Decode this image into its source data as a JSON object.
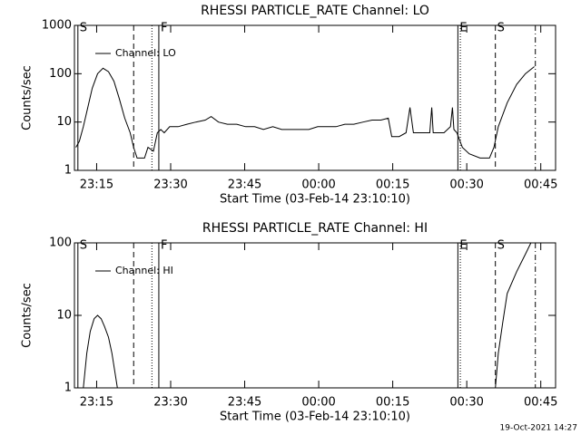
{
  "chart_data": [
    {
      "type": "line",
      "title": "RHESSI PARTICLE_RATE Channel: LO",
      "xlabel": "Start Time (03-Feb-14 23:10:10)",
      "ylabel": "Counts/sec",
      "log_y": true,
      "legend": "upper left",
      "xlim": [
        1390.5,
        1488.0
      ],
      "xticks": [
        {
          "value": 1395,
          "label": "23:15"
        },
        {
          "value": 1410,
          "label": "23:30"
        },
        {
          "value": 1425,
          "label": "23:45"
        },
        {
          "value": 1440,
          "label": "00:00"
        },
        {
          "value": 1455,
          "label": "00:15"
        },
        {
          "value": 1470,
          "label": "00:30"
        },
        {
          "value": 1485,
          "label": "00:45"
        }
      ],
      "ylim": [
        1,
        1000
      ],
      "yticks": [
        1000,
        100,
        10,
        1
      ],
      "x": [
        1390.8,
        1391.5,
        1392.3,
        1393.2,
        1394.1,
        1395.2,
        1396.3,
        1397.4,
        1398.5,
        1399.6,
        1400.7,
        1401.8,
        1402.5,
        1403.2,
        1404.7,
        1405.4,
        1406.5,
        1407.3,
        1408.0,
        1408.7,
        1409.8,
        1411.5,
        1413.3,
        1415.1,
        1417.0,
        1418.2,
        1419.7,
        1421.5,
        1423.4,
        1425.2,
        1427.0,
        1428.8,
        1430.7,
        1432.5,
        1434.3,
        1436.2,
        1438.0,
        1439.8,
        1441.6,
        1443.5,
        1445.3,
        1447.1,
        1449.0,
        1450.8,
        1452.6,
        1454.1,
        1454.8,
        1456.3,
        1457.7,
        1458.5,
        1459.2,
        1460.9,
        1462.5,
        1462.9,
        1463.2,
        1465.4,
        1466.7,
        1467.1,
        1467.4,
        1468.0,
        1469.1,
        1470.5,
        1472.7,
        1474.6,
        1475.5,
        1476.4,
        1478.2,
        1480.1,
        1481.9,
        1483.7
      ],
      "series": [
        {
          "name": "Channel: LO",
          "color": "#000000",
          "values": [
            3,
            4,
            8,
            20,
            50,
            100,
            130,
            110,
            70,
            30,
            12,
            6,
            3,
            1.8,
            1.8,
            3,
            2.5,
            6,
            7,
            6,
            8,
            8,
            9,
            10,
            11,
            13,
            10,
            9,
            9,
            8,
            8,
            7,
            8,
            7,
            7,
            7,
            7,
            8,
            8,
            8,
            9,
            9,
            10,
            11,
            11,
            12,
            5,
            5,
            6,
            20,
            6,
            6,
            6,
            20,
            6,
            6,
            8,
            20,
            7,
            6,
            3,
            2.2,
            1.8,
            1.8,
            3,
            8,
            25,
            60,
            100,
            140
          ]
        }
      ],
      "vlines": [
        {
          "x": 1391.2,
          "style": "solid",
          "label": "S"
        },
        {
          "x": 1402.5,
          "style": "dashed"
        },
        {
          "x": 1406.2,
          "style": "dotted"
        },
        {
          "x": 1407.6,
          "style": "solid",
          "label": "F"
        },
        {
          "x": 1468.2,
          "style": "solid",
          "label": "E"
        },
        {
          "x": 1468.7,
          "style": "dotted"
        },
        {
          "x": 1475.8,
          "style": "dashed",
          "label": "S"
        },
        {
          "x": 1483.9,
          "style": "dashdot"
        }
      ]
    },
    {
      "type": "line",
      "title": "RHESSI PARTICLE_RATE Channel: HI",
      "xlabel": "Start Time (03-Feb-14 23:10:10)",
      "ylabel": "Counts/sec",
      "log_y": true,
      "legend": "upper left",
      "xlim": [
        1390.5,
        1488.0
      ],
      "xticks": [
        {
          "value": 1395,
          "label": "23:15"
        },
        {
          "value": 1410,
          "label": "23:30"
        },
        {
          "value": 1425,
          "label": "23:45"
        },
        {
          "value": 1440,
          "label": "00:00"
        },
        {
          "value": 1455,
          "label": "00:15"
        },
        {
          "value": 1470,
          "label": "00:30"
        },
        {
          "value": 1485,
          "label": "00:45"
        }
      ],
      "ylim": [
        1,
        100
      ],
      "yticks": [
        100,
        10,
        1
      ],
      "x": [
        1392.3,
        1393.0,
        1393.7,
        1394.5,
        1395.2,
        1395.9,
        1396.6,
        1397.4,
        1398.1,
        1398.8,
        1399.2,
        1430.0,
        1475.8,
        1476.4,
        1477.3,
        1478.2,
        1480.1,
        1481.9,
        1483.0
      ],
      "series": [
        {
          "name": "Channel: HI",
          "color": "#000000",
          "values": [
            1,
            3,
            6,
            9,
            10,
            9,
            7,
            5,
            3,
            1.5,
            1,
            null,
            1,
            3,
            8,
            20,
            40,
            70,
            100
          ]
        }
      ],
      "vlines": [
        {
          "x": 1391.2,
          "style": "solid",
          "label": "S"
        },
        {
          "x": 1402.5,
          "style": "dashed"
        },
        {
          "x": 1406.2,
          "style": "dotted"
        },
        {
          "x": 1407.6,
          "style": "solid",
          "label": "F"
        },
        {
          "x": 1468.2,
          "style": "solid",
          "label": "E"
        },
        {
          "x": 1468.7,
          "style": "dotted"
        },
        {
          "x": 1475.8,
          "style": "dashed",
          "label": "S"
        },
        {
          "x": 1483.9,
          "style": "dashdot"
        }
      ]
    }
  ],
  "footer": "19-Oct-2021 14:27"
}
